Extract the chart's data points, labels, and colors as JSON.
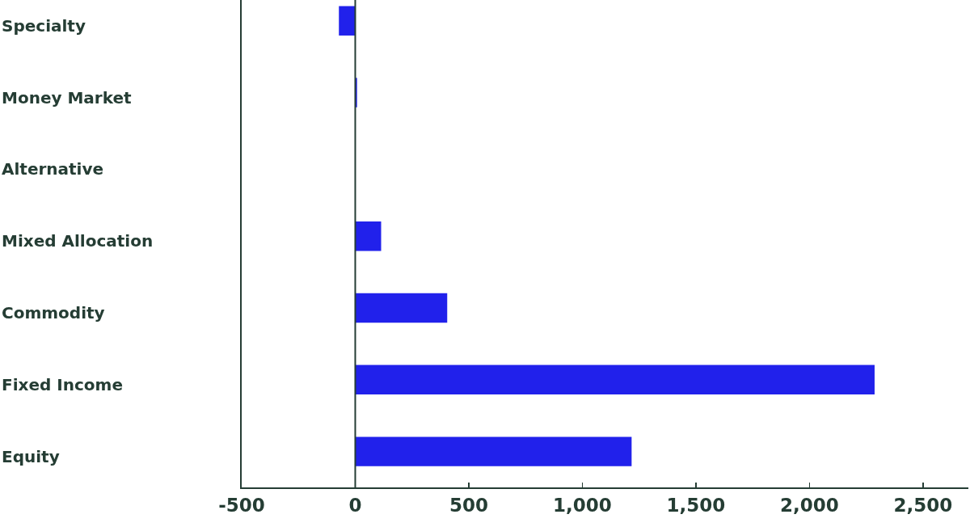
{
  "chart_data": {
    "type": "bar",
    "orientation": "horizontal",
    "categories": [
      "Specialty",
      "Money Market",
      "Alternative",
      "Mixed Allocation",
      "Commodity",
      "Fixed Income",
      "Equity"
    ],
    "values": [
      -72,
      8,
      0,
      114,
      405,
      2287,
      1217
    ],
    "color": "#2121eb",
    "xlim": [
      -500,
      2700
    ],
    "xticks": [
      -500,
      0,
      500,
      {
        "value": 1000,
        "label": "1,000"
      },
      {
        "value": 1500,
        "label": "1,500"
      },
      {
        "value": 2000,
        "label": "2,000"
      },
      {
        "value": 2500,
        "label": "2,500"
      }
    ],
    "ref_lines": [
      {
        "axis": "x",
        "value": 0,
        "color": "#253d34"
      }
    ]
  }
}
